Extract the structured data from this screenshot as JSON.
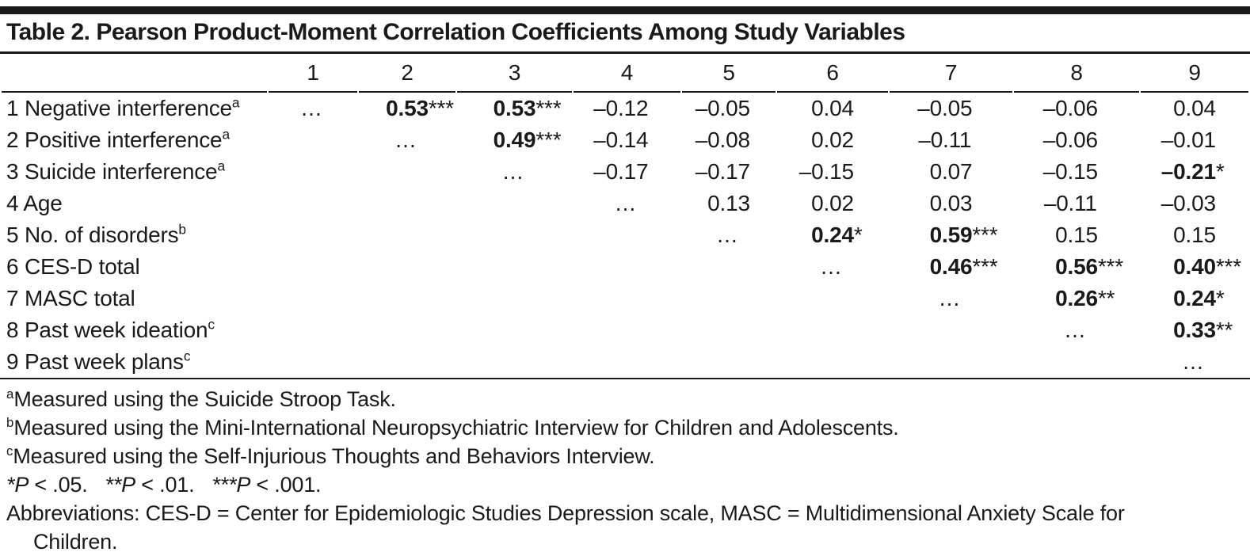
{
  "title": "Table 2. Pearson Product-Moment Correlation Coefficients Among Study Variables",
  "colors": {
    "text": "#1a1a1a",
    "rule": "#1a1a1a",
    "background": "#ffffff"
  },
  "table": {
    "col_headers": [
      "1",
      "2",
      "3",
      "4",
      "5",
      "6",
      "7",
      "8",
      "9"
    ],
    "rows": [
      {
        "label": "1 Negative interference",
        "sup": "a",
        "cells": [
          "…",
          {
            "v": "0.53***",
            "bold": true
          },
          {
            "v": "0.53***",
            "bold": true
          },
          "–0.12",
          "–0.05",
          "0.04",
          "–0.05",
          "–0.06",
          "0.04"
        ]
      },
      {
        "label": "2 Positive interference",
        "sup": "a",
        "cells": [
          null,
          "…",
          {
            "v": "0.49***",
            "bold": true
          },
          "–0.14",
          "–0.08",
          "0.02",
          "–0.11",
          "–0.06",
          "–0.01"
        ]
      },
      {
        "label": "3 Suicide interference",
        "sup": "a",
        "cells": [
          null,
          null,
          "…",
          "–0.17",
          "–0.17",
          "–0.15",
          "0.07",
          "–0.15",
          {
            "v": "–0.21*",
            "bold": true
          }
        ]
      },
      {
        "label": "4 Age",
        "sup": "",
        "cells": [
          null,
          null,
          null,
          "…",
          "0.13",
          "0.02",
          "0.03",
          "–0.11",
          "–0.03"
        ]
      },
      {
        "label": "5 No. of disorders",
        "sup": "b",
        "cells": [
          null,
          null,
          null,
          null,
          "…",
          {
            "v": "0.24*",
            "bold": true
          },
          {
            "v": "0.59***",
            "bold": true
          },
          "0.15",
          "0.15"
        ]
      },
      {
        "label": "6 CES-D total",
        "sup": "",
        "cells": [
          null,
          null,
          null,
          null,
          null,
          "…",
          {
            "v": "0.46***",
            "bold": true
          },
          {
            "v": "0.56***",
            "bold": true
          },
          {
            "v": "0.40***",
            "bold": true
          }
        ]
      },
      {
        "label": "7 MASC total",
        "sup": "",
        "cells": [
          null,
          null,
          null,
          null,
          null,
          null,
          "…",
          {
            "v": "0.26**",
            "bold": true
          },
          {
            "v": "0.24*",
            "bold": true
          }
        ]
      },
      {
        "label": "8 Past week ideation",
        "sup": "c",
        "cells": [
          null,
          null,
          null,
          null,
          null,
          null,
          null,
          "…",
          {
            "v": "0.33**",
            "bold": true
          }
        ]
      },
      {
        "label": "9 Past week plans",
        "sup": "c",
        "cells": [
          null,
          null,
          null,
          null,
          null,
          null,
          null,
          null,
          "…"
        ]
      }
    ]
  },
  "footnotes": {
    "measures": [
      {
        "sup": "a",
        "text": "Measured using the Suicide Stroop Task."
      },
      {
        "sup": "b",
        "text": "Measured using the Mini-International Neuropsychiatric Interview for Children and Adolescents."
      },
      {
        "sup": "c",
        "text": "Measured using the Self-Injurious Thoughts and Behaviors Interview."
      }
    ],
    "significance": [
      {
        "stars": "*",
        "p": "P",
        "threshold": "< .05."
      },
      {
        "stars": "**",
        "p": "P",
        "threshold": "< .01."
      },
      {
        "stars": "***",
        "p": "P",
        "threshold": "< .001."
      }
    ],
    "abbreviations": "Abbreviations: CES-D = Center for Epidemiologic Studies Depression scale, MASC = Multidimensional Anxiety Scale for Children."
  }
}
